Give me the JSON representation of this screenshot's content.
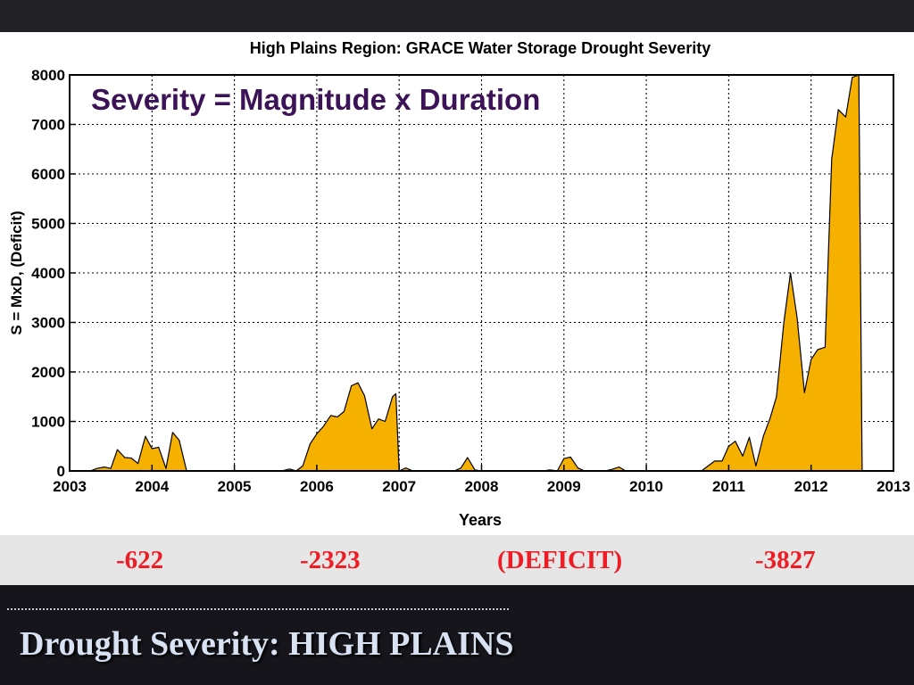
{
  "slide": {
    "title": "Drought Severity: HIGH PLAINS",
    "band_values": [
      "-622",
      "-2323",
      "(DEFICIT)",
      "-3827"
    ]
  },
  "colors": {
    "fill": "#f5b000",
    "annotation": "#3c1356",
    "band_text": "#ee1c24",
    "title_text": "#d8e2f2"
  },
  "chart_data": {
    "type": "area",
    "title": "High Plains Region: GRACE Water Storage Drought Severity",
    "annotation": "Severity = Magnitude x Duration",
    "xlabel": "Years",
    "ylabel": "S = MxD, (Deficit)",
    "xlim": [
      2003,
      2013
    ],
    "ylim": [
      0,
      8000
    ],
    "xticks": [
      2003,
      2004,
      2005,
      2006,
      2007,
      2008,
      2009,
      2010,
      2011,
      2012,
      2013
    ],
    "yticks": [
      0,
      1000,
      2000,
      3000,
      4000,
      5000,
      6000,
      7000,
      8000
    ],
    "grid": true,
    "series": [
      {
        "x": [
          2003.25,
          2003.33,
          2003.42,
          2003.5,
          2003.58,
          2003.67,
          2003.75,
          2003.83,
          2003.92,
          2004.0,
          2004.08,
          2004.17,
          2004.25,
          2004.33,
          2004.42,
          2004.5,
          2005.58,
          2005.67,
          2005.75,
          2005.83,
          2005.92,
          2006.0,
          2006.08,
          2006.17,
          2006.25,
          2006.33,
          2006.42,
          2006.5,
          2006.58,
          2006.67,
          2006.75,
          2006.83,
          2006.92,
          2006.96,
          2007.0,
          2007.08,
          2007.17,
          2007.25,
          2007.67,
          2007.75,
          2007.83,
          2007.92,
          2008.0,
          2008.08,
          2008.75,
          2008.83,
          2008.92,
          2009.0,
          2009.08,
          2009.17,
          2009.25,
          2009.5,
          2009.58,
          2009.67,
          2009.75,
          2009.83,
          2010.67,
          2010.75,
          2010.83,
          2010.92,
          2011.0,
          2011.08,
          2011.17,
          2011.25,
          2011.33,
          2011.42,
          2011.5,
          2011.58,
          2011.67,
          2011.75,
          2011.83,
          2011.92,
          2012.0,
          2012.08,
          2012.17,
          2012.25,
          2012.33,
          2012.42,
          2012.5,
          2012.58,
          2012.62
        ],
        "y": [
          0,
          50,
          80,
          50,
          430,
          270,
          260,
          150,
          700,
          450,
          480,
          50,
          780,
          620,
          0,
          0,
          0,
          40,
          0,
          100,
          550,
          750,
          900,
          1120,
          1090,
          1200,
          1720,
          1780,
          1520,
          850,
          1050,
          1000,
          1500,
          1560,
          0,
          60,
          0,
          0,
          0,
          60,
          270,
          20,
          0,
          0,
          0,
          20,
          0,
          250,
          280,
          60,
          0,
          0,
          30,
          80,
          0,
          0,
          0,
          100,
          200,
          200,
          500,
          600,
          300,
          680,
          100,
          700,
          1050,
          1500,
          3000,
          4000,
          3100,
          1580,
          2250,
          2450,
          2500,
          6300,
          7300,
          7150,
          7950,
          8000,
          0
        ]
      }
    ]
  }
}
